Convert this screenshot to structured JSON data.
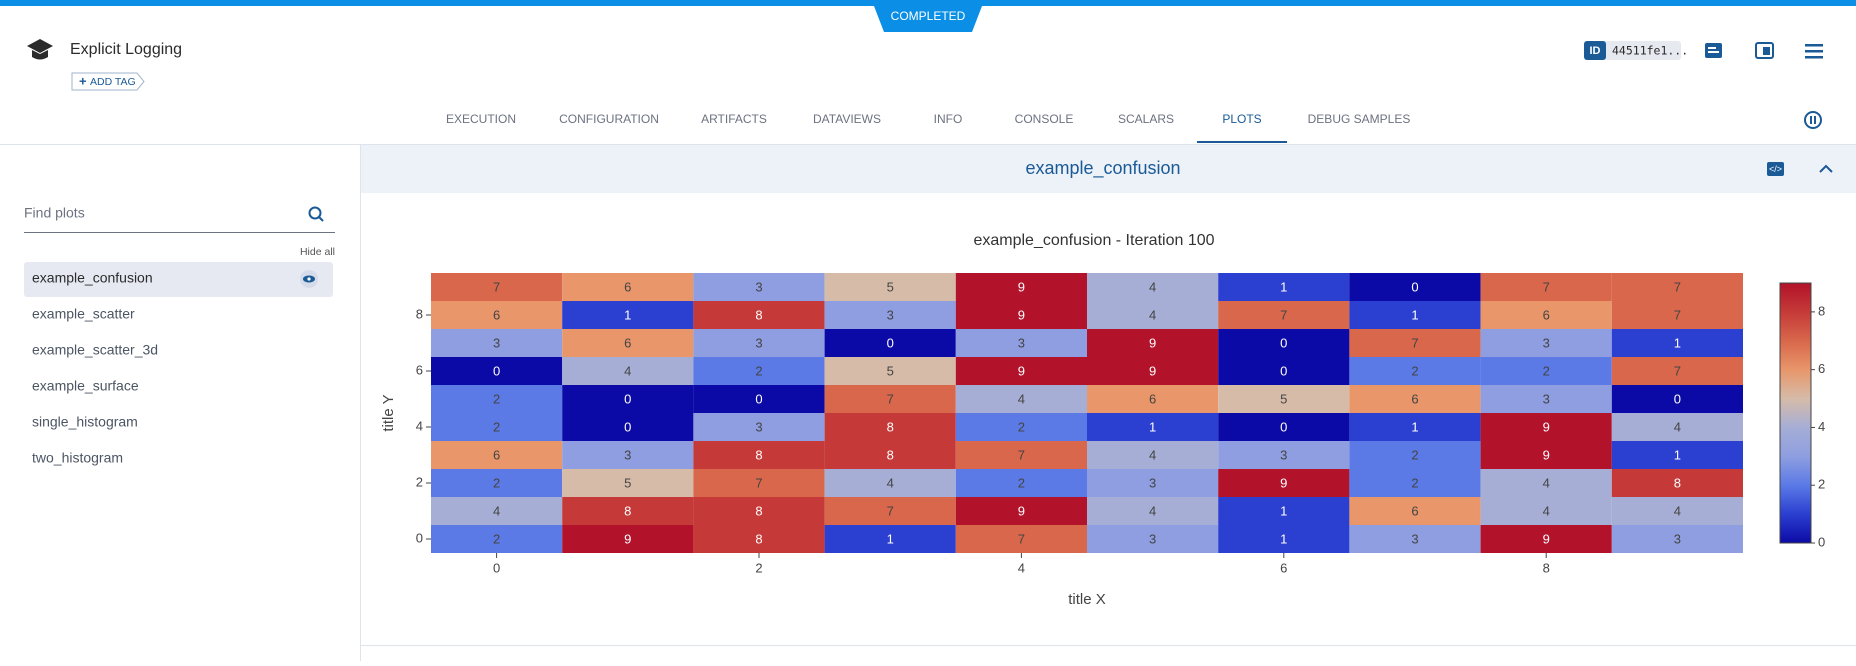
{
  "status": "COMPLETED",
  "header": {
    "title": "Explicit Logging",
    "add_tag": "ADD TAG",
    "id_label": "ID",
    "id_value": "44511fe1..."
  },
  "tabs": [
    "EXECUTION",
    "CONFIGURATION",
    "ARTIFACTS",
    "DATAVIEWS",
    "INFO",
    "CONSOLE",
    "SCALARS",
    "PLOTS",
    "DEBUG SAMPLES"
  ],
  "active_tab": 7,
  "sidebar": {
    "search_placeholder": "Find plots",
    "hide_all": "Hide all",
    "items": [
      "example_confusion",
      "example_scatter",
      "example_scatter_3d",
      "example_surface",
      "single_histogram",
      "two_histogram"
    ],
    "selected": 0
  },
  "panel_title": "example_confusion",
  "chart_data": {
    "type": "heatmap",
    "title": "example_confusion - Iteration 100",
    "x_label": "title X",
    "y_label": "title Y",
    "x": [
      0,
      1,
      2,
      3,
      4,
      5,
      6,
      7,
      8,
      9
    ],
    "y": [
      0,
      1,
      2,
      3,
      4,
      5,
      6,
      7,
      8,
      9
    ],
    "z": [
      [
        2,
        9,
        8,
        1,
        7,
        3,
        1,
        3,
        9,
        3
      ],
      [
        4,
        8,
        8,
        7,
        9,
        4,
        1,
        6,
        4,
        4
      ],
      [
        2,
        5,
        7,
        4,
        2,
        3,
        9,
        2,
        4,
        8
      ],
      [
        6,
        3,
        8,
        8,
        7,
        4,
        3,
        2,
        9,
        1
      ],
      [
        2,
        0,
        3,
        8,
        2,
        1,
        0,
        1,
        9,
        4
      ],
      [
        2,
        0,
        0,
        7,
        4,
        6,
        5,
        6,
        3,
        0
      ],
      [
        0,
        4,
        2,
        5,
        9,
        9,
        0,
        2,
        2,
        7
      ],
      [
        3,
        6,
        3,
        0,
        3,
        9,
        0,
        7,
        3,
        1
      ],
      [
        6,
        1,
        8,
        3,
        9,
        4,
        7,
        1,
        6,
        7
      ],
      [
        7,
        6,
        3,
        5,
        9,
        4,
        1,
        0,
        7,
        7
      ]
    ],
    "xlim": [
      -0.5,
      9.5
    ],
    "ylim": [
      -0.5,
      9.5
    ],
    "xticks": [
      0,
      2,
      4,
      6,
      8
    ],
    "yticks": [
      0,
      2,
      4,
      6,
      8
    ],
    "zlim": [
      0,
      9
    ],
    "colorbar_ticks": [
      0,
      2,
      4,
      6,
      8
    ],
    "colorscale": [
      "#0c0aa6",
      "#2b3fd0",
      "#5b7ae6",
      "#8e9ee0",
      "#a6aed6",
      "#d6bba8",
      "#e8966a",
      "#d8674b",
      "#c53a38",
      "#b2122a"
    ]
  }
}
